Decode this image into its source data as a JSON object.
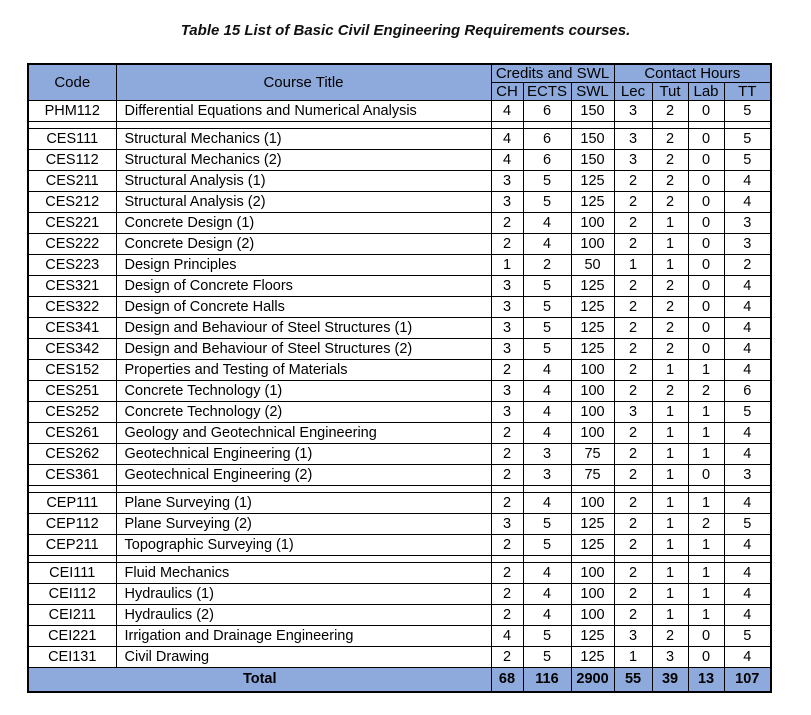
{
  "title": "Table 15 List of Basic Civil Engineering Requirements courses.",
  "colors": {
    "header_bg": "#8EAADC",
    "border": "#000000",
    "text": "#000000",
    "page_bg": "#FFFFFF"
  },
  "table": {
    "header": {
      "code": "Code",
      "course_title": "Course Title",
      "credits_group": "Credits and SWL",
      "contact_group": "Contact Hours",
      "subcols": [
        "CH",
        "ECTS",
        "SWL",
        "Lec",
        "Tut",
        "Lab",
        "TT"
      ]
    },
    "groups": [
      {
        "rows": [
          {
            "code": "PHM112",
            "title": "Differential Equations and Numerical Analysis",
            "values": [
              4,
              6,
              150,
              3,
              2,
              0,
              5
            ]
          }
        ]
      },
      {
        "rows": [
          {
            "code": "CES111",
            "title": "Structural Mechanics (1)",
            "values": [
              4,
              6,
              150,
              3,
              2,
              0,
              5
            ]
          },
          {
            "code": "CES112",
            "title": "Structural Mechanics (2)",
            "values": [
              4,
              6,
              150,
              3,
              2,
              0,
              5
            ]
          },
          {
            "code": "CES211",
            "title": "Structural Analysis (1)",
            "values": [
              3,
              5,
              125,
              2,
              2,
              0,
              4
            ]
          },
          {
            "code": "CES212",
            "title": "Structural Analysis (2)",
            "values": [
              3,
              5,
              125,
              2,
              2,
              0,
              4
            ]
          },
          {
            "code": "CES221",
            "title": "Concrete Design (1)",
            "values": [
              2,
              4,
              100,
              2,
              1,
              0,
              3
            ]
          },
          {
            "code": "CES222",
            "title": "Concrete Design (2)",
            "values": [
              2,
              4,
              100,
              2,
              1,
              0,
              3
            ]
          },
          {
            "code": "CES223",
            "title": "Design Principles",
            "values": [
              1,
              2,
              50,
              1,
              1,
              0,
              2
            ]
          },
          {
            "code": "CES321",
            "title": "Design of Concrete Floors",
            "values": [
              3,
              5,
              125,
              2,
              2,
              0,
              4
            ]
          },
          {
            "code": "CES322",
            "title": "Design of Concrete Halls",
            "values": [
              3,
              5,
              125,
              2,
              2,
              0,
              4
            ]
          },
          {
            "code": "CES341",
            "title": "Design and Behaviour of Steel Structures (1)",
            "values": [
              3,
              5,
              125,
              2,
              2,
              0,
              4
            ]
          },
          {
            "code": "CES342",
            "title": "Design and Behaviour of Steel Structures (2)",
            "values": [
              3,
              5,
              125,
              2,
              2,
              0,
              4
            ]
          },
          {
            "code": "CES152",
            "title": "Properties and Testing of Materials",
            "values": [
              2,
              4,
              100,
              2,
              1,
              1,
              4
            ]
          },
          {
            "code": "CES251",
            "title": "Concrete Technology (1)",
            "values": [
              3,
              4,
              100,
              2,
              2,
              2,
              6
            ]
          },
          {
            "code": "CES252",
            "title": "Concrete Technology (2)",
            "values": [
              3,
              4,
              100,
              3,
              1,
              1,
              5
            ]
          },
          {
            "code": "CES261",
            "title": "Geology and Geotechnical Engineering",
            "values": [
              2,
              4,
              100,
              2,
              1,
              1,
              4
            ]
          },
          {
            "code": "CES262",
            "title": "Geotechnical Engineering (1)",
            "values": [
              2,
              3,
              75,
              2,
              1,
              1,
              4
            ]
          },
          {
            "code": "CES361",
            "title": "Geotechnical Engineering (2)",
            "values": [
              2,
              3,
              75,
              2,
              1,
              0,
              3
            ]
          }
        ]
      },
      {
        "rows": [
          {
            "code": "CEP111",
            "title": "Plane Surveying (1)",
            "values": [
              2,
              4,
              100,
              2,
              1,
              1,
              4
            ]
          },
          {
            "code": "CEP112",
            "title": "Plane Surveying (2)",
            "values": [
              3,
              5,
              125,
              2,
              1,
              2,
              5
            ]
          },
          {
            "code": "CEP211",
            "title": "Topographic Surveying (1)",
            "values": [
              2,
              5,
              125,
              2,
              1,
              1,
              4
            ]
          }
        ]
      },
      {
        "rows": [
          {
            "code": "CEI111",
            "title": "Fluid Mechanics",
            "values": [
              2,
              4,
              100,
              2,
              1,
              1,
              4
            ]
          },
          {
            "code": "CEI112",
            "title": "Hydraulics (1)",
            "values": [
              2,
              4,
              100,
              2,
              1,
              1,
              4
            ]
          },
          {
            "code": "CEI211",
            "title": "Hydraulics (2)",
            "values": [
              2,
              4,
              100,
              2,
              1,
              1,
              4
            ]
          },
          {
            "code": "CEI221",
            "title": "Irrigation and Drainage Engineering",
            "values": [
              4,
              5,
              125,
              3,
              2,
              0,
              5
            ]
          },
          {
            "code": "CEI131",
            "title": "Civil Drawing",
            "values": [
              2,
              5,
              125,
              1,
              3,
              0,
              4
            ]
          }
        ]
      }
    ],
    "total": {
      "label": "Total",
      "values": [
        68,
        116,
        2900,
        55,
        39,
        13,
        107
      ]
    }
  }
}
